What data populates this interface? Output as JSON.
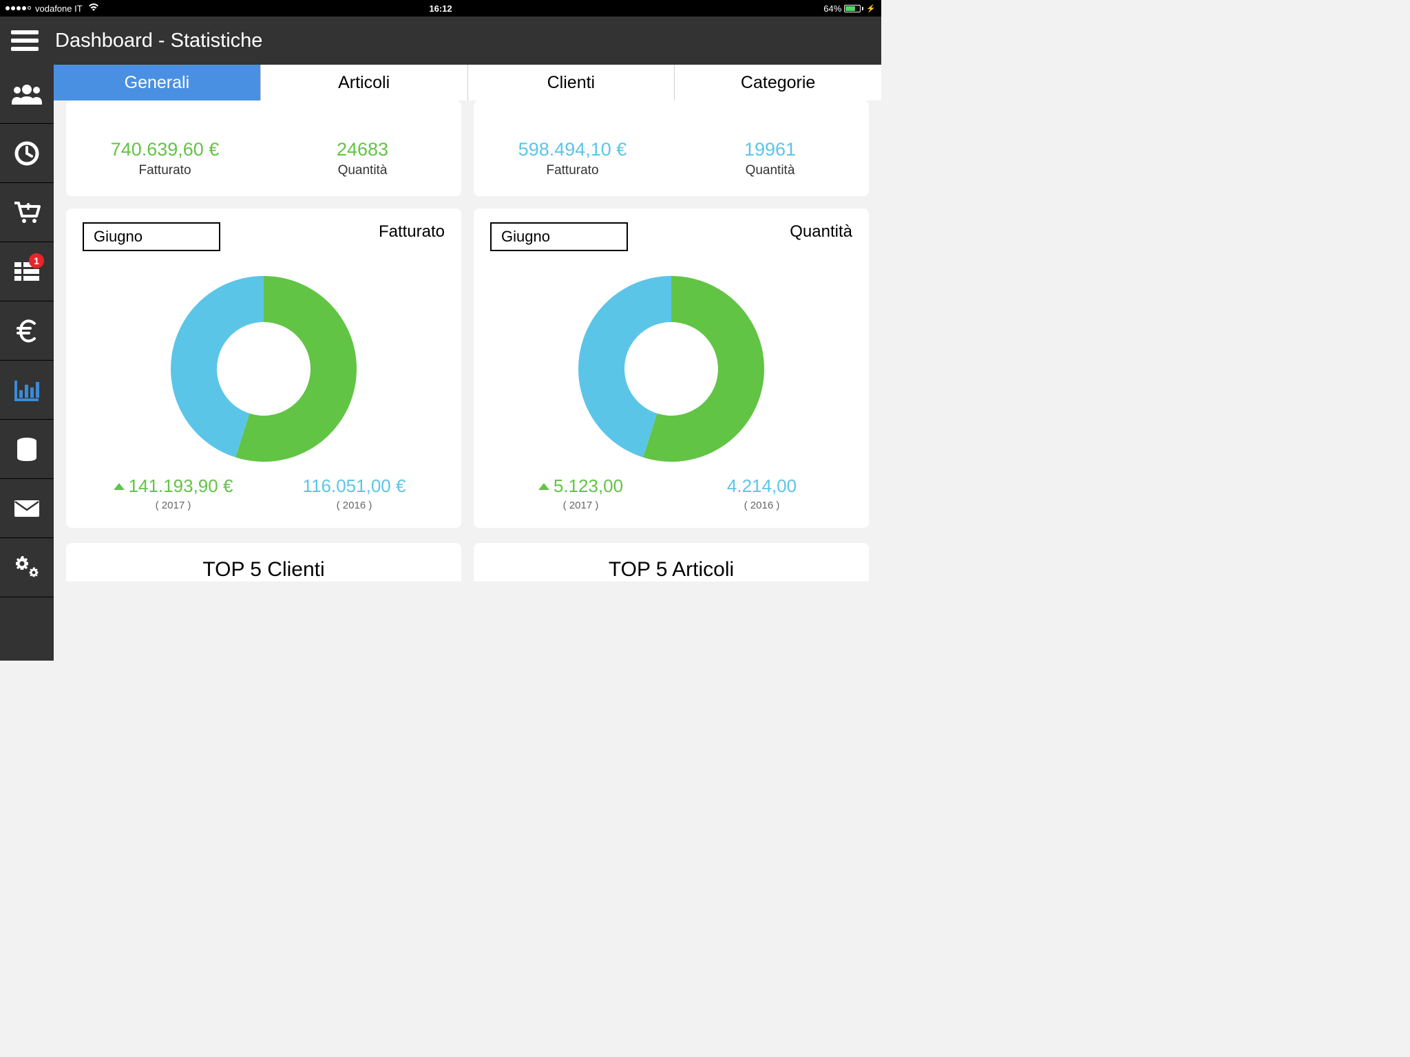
{
  "status_bar": {
    "carrier": "vodafone IT",
    "signal_filled": 4,
    "signal_total": 5,
    "time": "16:12",
    "battery_percent": "64%",
    "battery_level": 0.64,
    "charging": true
  },
  "header": {
    "title": "Dashboard - Statistiche"
  },
  "sidebar": {
    "items": [
      {
        "name": "users-icon",
        "active": false,
        "badge": null
      },
      {
        "name": "clock-icon",
        "active": false,
        "badge": null
      },
      {
        "name": "cart-icon",
        "active": false,
        "badge": null
      },
      {
        "name": "grid-icon",
        "active": false,
        "badge": "1"
      },
      {
        "name": "euro-icon",
        "active": false,
        "badge": null
      },
      {
        "name": "barchart-icon",
        "active": true,
        "badge": null
      },
      {
        "name": "database-icon",
        "active": false,
        "badge": null
      },
      {
        "name": "mail-icon",
        "active": false,
        "badge": null
      },
      {
        "name": "gears-icon",
        "active": false,
        "badge": null
      }
    ],
    "badge_color": "#e8252a"
  },
  "tabs": {
    "items": [
      "Generali",
      "Articoli",
      "Clienti",
      "Categorie"
    ],
    "active_index": 0,
    "active_bg": "#4a90e2",
    "active_fg": "#ffffff"
  },
  "colors": {
    "green": "#62c445",
    "blue": "#5bc5e8",
    "card_bg": "#ffffff",
    "page_bg": "#f2f2f2",
    "sidebar_bg": "#333333",
    "header_bg": "#333333"
  },
  "top_metrics": {
    "left": {
      "value1": "740.639,60 €",
      "label1": "Fatturato",
      "color1": "#62c445",
      "value2": "24683",
      "label2": "Quantità",
      "color2": "#62c445"
    },
    "right": {
      "value1": "598.494,10 €",
      "label1": "Fatturato",
      "color1": "#5bc5e8",
      "value2": "19961",
      "label2": "Quantità",
      "color2": "#5bc5e8"
    }
  },
  "chart_left": {
    "type": "donut",
    "month": "Giugno",
    "title": "Fatturato",
    "title_fontsize": 24,
    "outer_radius": 135,
    "inner_radius": 68,
    "background_color": "#ffffff",
    "slices": [
      {
        "label": "2017",
        "value": 141193.9,
        "display": "141.193,90 €",
        "color": "#62c445",
        "trend": "up",
        "fraction": 0.549
      },
      {
        "label": "2016",
        "value": 116051.0,
        "display": "116.051,00 €",
        "color": "#5bc5e8",
        "trend": null,
        "fraction": 0.451
      }
    ],
    "year_labels": [
      "( 2017 )",
      "( 2016 )"
    ]
  },
  "chart_right": {
    "type": "donut",
    "month": "Giugno",
    "title": "Quantità",
    "title_fontsize": 24,
    "outer_radius": 135,
    "inner_radius": 68,
    "background_color": "#ffffff",
    "slices": [
      {
        "label": "2017",
        "value": 5123.0,
        "display": "5.123,00",
        "color": "#62c445",
        "trend": "up",
        "fraction": 0.549
      },
      {
        "label": "2016",
        "value": 4214.0,
        "display": "4.214,00",
        "color": "#5bc5e8",
        "trend": null,
        "fraction": 0.451
      }
    ],
    "year_labels": [
      "( 2017 )",
      "( 2016 )"
    ]
  },
  "bottom_sections": {
    "left_title": "TOP 5 Clienti",
    "right_title": "TOP 5 Articoli"
  }
}
